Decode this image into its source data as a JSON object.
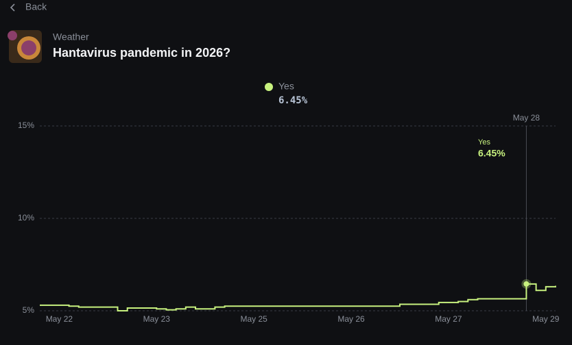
{
  "header": {
    "back": "Back",
    "category": "Weather",
    "title": "Hantavirus pandemic in 2026?"
  },
  "chart_data": {
    "type": "line",
    "categories": [
      null,
      null,
      "May 22",
      null,
      null,
      null,
      null,
      null,
      null,
      null,
      null,
      null,
      "May 23",
      null,
      null,
      null,
      null,
      null,
      null,
      null,
      null,
      null,
      "May 25",
      null,
      null,
      null,
      null,
      null,
      null,
      null,
      null,
      null,
      "May 26",
      null,
      null,
      null,
      null,
      null,
      null,
      null,
      null,
      null,
      "May 27",
      null,
      null,
      null,
      null,
      null,
      null,
      null,
      null,
      null,
      "May 29",
      null
    ],
    "series": [
      {
        "name": "Yes",
        "color": "#c8f27f",
        "values": [
          5.3,
          5.3,
          5.3,
          5.25,
          5.2,
          5.2,
          5.2,
          5.2,
          5.0,
          5.15,
          5.15,
          5.15,
          5.1,
          5.05,
          5.1,
          5.2,
          5.1,
          5.1,
          5.2,
          5.25,
          5.25,
          5.25,
          5.25,
          5.25,
          5.25,
          5.25,
          5.25,
          5.25,
          5.25,
          5.25,
          5.25,
          5.25,
          5.25,
          5.25,
          5.25,
          5.25,
          5.25,
          5.35,
          5.35,
          5.35,
          5.35,
          5.45,
          5.45,
          5.5,
          5.6,
          5.65,
          5.65,
          5.65,
          5.65,
          5.65,
          6.45,
          6.1,
          6.3,
          6.35
        ],
        "value_labels": [
          null,
          null,
          null,
          null,
          null,
          null,
          null,
          null,
          null,
          null,
          null,
          null,
          null,
          null,
          null,
          null,
          null,
          null,
          null,
          null,
          null,
          null,
          null,
          null,
          null,
          null,
          null,
          null,
          null,
          null,
          null,
          null,
          null,
          null,
          null,
          null,
          null,
          null,
          null,
          null,
          null,
          null,
          null,
          null,
          null,
          null,
          null,
          null,
          null,
          null,
          "6.45%",
          null,
          null,
          null
        ]
      }
    ],
    "hover_date": "May 28",
    "ylim": [
      5,
      15
    ],
    "yticks": [
      {
        "value": 5,
        "label": "5%"
      },
      {
        "value": 10,
        "label": "10%"
      },
      {
        "value": 15,
        "label": "15%"
      }
    ],
    "grid": true
  }
}
